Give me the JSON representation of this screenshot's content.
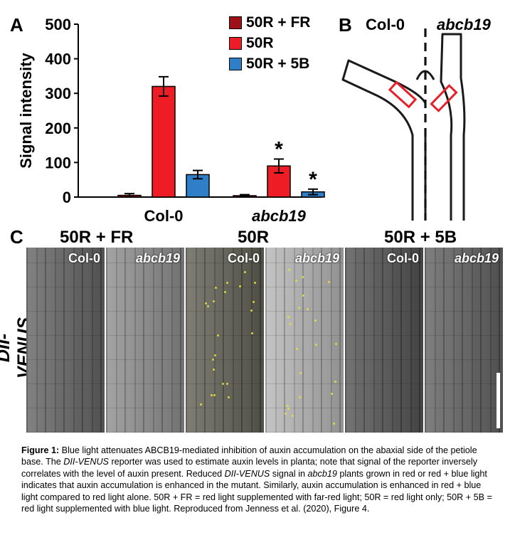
{
  "panel_a": {
    "letter": "A",
    "chart_data": {
      "type": "bar",
      "categories": [
        "Col-0",
        "abcb19"
      ],
      "ylabel": "Signal intensity",
      "ylim": [
        0,
        500
      ],
      "yticks": [
        0,
        100,
        200,
        300,
        400,
        500
      ],
      "series": [
        {
          "name": "50R + FR",
          "color": "#a01018",
          "values": [
            5,
            4
          ],
          "errors": [
            5,
            3
          ],
          "significant": [
            false,
            false
          ]
        },
        {
          "name": "50R",
          "color": "#ee1c24",
          "values": [
            320,
            90
          ],
          "errors": [
            28,
            20
          ],
          "significant": [
            false,
            true
          ]
        },
        {
          "name": "50R + 5B",
          "color": "#2f7ec8",
          "values": [
            65,
            15
          ],
          "errors": [
            12,
            8
          ],
          "significant": [
            false,
            true
          ]
        }
      ],
      "significance_marker": "*"
    }
  },
  "panel_b": {
    "letter": "B",
    "left_label": "Col-0",
    "right_label": "abcb19",
    "box_color": "#e8202a"
  },
  "panel_c": {
    "letter": "C",
    "row_label": "DII-VENUS",
    "conditions": [
      "50R + FR",
      "50R",
      "50R + 5B"
    ],
    "tiles": [
      {
        "label": "Col-0",
        "tone": "#5e5e5e",
        "venus": false
      },
      {
        "label": "abcb19",
        "tone": "#8a8a8a",
        "venus": false
      },
      {
        "label": "Col-0",
        "tone": "#5a5a4e",
        "venus": true
      },
      {
        "label": "abcb19",
        "tone": "#b4b4b4",
        "venus": true
      },
      {
        "label": "Col-0",
        "tone": "#4c4c4c",
        "venus": false
      },
      {
        "label": "abcb19",
        "tone": "#5c5c5c",
        "venus": false
      }
    ]
  },
  "caption": {
    "figure_label": "Figure 1:",
    "t1": " Blue light attenuates ABCB19-mediated inhibition of auxin accumulation on the abaxial side of the petiole base. The ",
    "i1": "DII-VENUS",
    "t2": " reporter was used to estimate auxin levels in planta; note that signal of the reporter inversely correlates with the level of auxin present. Reduced ",
    "i2": "DII-VENUS",
    "t3": " signal in ",
    "i3": "abcb19",
    "t4": " plants grown in red or red + blue light indicates that auxin accumulation is enhanced in the mutant. Similarly, auxin accumulation is enhanced in red + blue light compared to red light alone. 50R + FR = red light supplemented with far-red light; 50R = red light only; 50R + 5B = red light supplemented with blue light. Reproduced from Jenness et al. (2020), Figure 4."
  }
}
